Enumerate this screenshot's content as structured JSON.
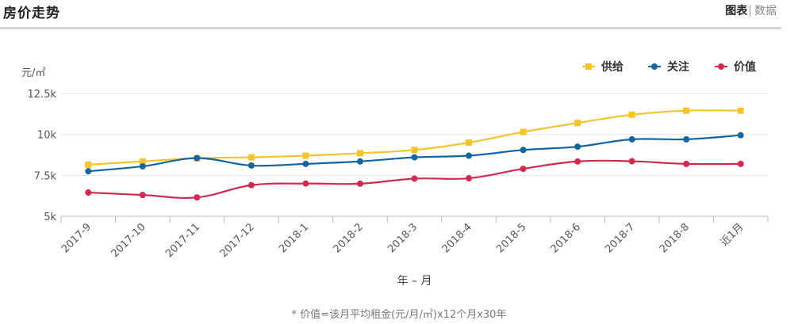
{
  "header": {
    "title": "房价走势",
    "view_chart": "图表",
    "separator": "|",
    "view_data": "数据"
  },
  "footnote": "* 价值=该月平均租金(元/月/㎡)x12个月x30年",
  "chart_data": {
    "type": "line",
    "title": "",
    "ylabel": "元/㎡",
    "xlabel": "年 – 月",
    "ylim": [
      5000,
      12500
    ],
    "yticks": [
      5000,
      7500,
      10000,
      12500
    ],
    "ytick_labels": [
      "5k",
      "7.5k",
      "10k",
      "12.5k"
    ],
    "grid": true,
    "legend_position": "top-right",
    "categories": [
      "2017-9",
      "2017-10",
      "2017-11",
      "2017-12",
      "2018-1",
      "2018-2",
      "2018-3",
      "2018-4",
      "2018-5",
      "2018-6",
      "2018-7",
      "2018-8",
      "近1月"
    ],
    "series": [
      {
        "name": "供给",
        "color": "#f5c42c",
        "marker": "square",
        "values": [
          8150,
          8350,
          8550,
          8600,
          8700,
          8850,
          9050,
          9500,
          10150,
          10700,
          11200,
          11450,
          11450
        ]
      },
      {
        "name": "关注",
        "color": "#1565a0",
        "marker": "circle",
        "values": [
          7750,
          8050,
          8550,
          8100,
          8200,
          8350,
          8600,
          8700,
          9050,
          9250,
          9700,
          9700,
          9950
        ]
      },
      {
        "name": "价值",
        "color": "#d2294e",
        "marker": "circle",
        "values": [
          6450,
          6300,
          6150,
          6900,
          7000,
          6990,
          7300,
          7320,
          7900,
          8350,
          8360,
          8200,
          8200
        ]
      }
    ]
  }
}
